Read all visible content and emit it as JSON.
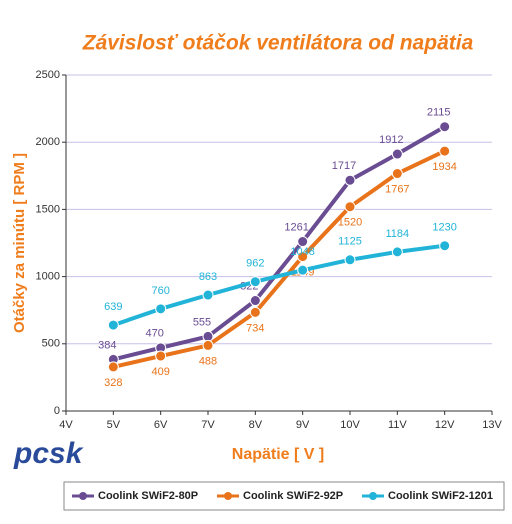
{
  "chart_data": {
    "type": "line",
    "title": "Závislosť otáčok ventilátora od napätia",
    "x_label": "Napätie [ V ]",
    "y_label": "Otáčky za minútu [ RPM ]",
    "logo": "pcsk",
    "x": [
      5,
      6,
      7,
      8,
      9,
      10,
      11,
      12
    ],
    "xlim": [
      4,
      13
    ],
    "xticks": [
      {
        "value": 4,
        "label": "4V"
      },
      {
        "value": 5,
        "label": "5V"
      },
      {
        "value": 6,
        "label": "6V"
      },
      {
        "value": 7,
        "label": "7V"
      },
      {
        "value": 8,
        "label": "8V"
      },
      {
        "value": 9,
        "label": "9V"
      },
      {
        "value": 10,
        "label": "10V"
      },
      {
        "value": 11,
        "label": "11V"
      },
      {
        "value": 12,
        "label": "12V"
      },
      {
        "value": 13,
        "label": "13V"
      }
    ],
    "ylim": [
      0,
      2500
    ],
    "yticks": [
      0,
      500,
      1000,
      1500,
      2000,
      2500
    ],
    "grid": true,
    "legend": "bottom",
    "series": [
      {
        "name": "Coolink  SWiF2-80P",
        "color": "#6a4c93",
        "values": [
          384,
          470,
          555,
          822,
          1261,
          1717,
          1912,
          2115
        ]
      },
      {
        "name": "Coolink  SWiF2-92P",
        "color": "#e8731a",
        "values": [
          328,
          409,
          488,
          734,
          1149,
          1520,
          1767,
          1934
        ]
      },
      {
        "name": "Coolink  SWiF2-1201",
        "color": "#22b4d8",
        "values": [
          639,
          760,
          863,
          962,
          1048,
          1125,
          1184,
          1230
        ]
      }
    ]
  }
}
